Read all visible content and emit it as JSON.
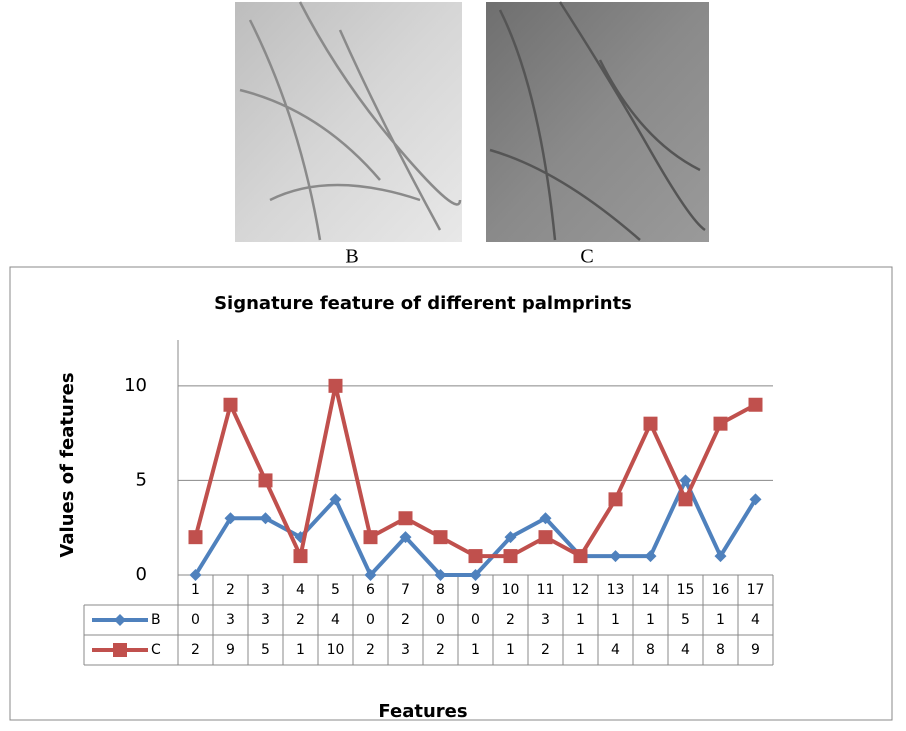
{
  "figure": {
    "panel_labels": [
      "B",
      "C"
    ]
  },
  "chart_data": {
    "type": "line",
    "title": "Signature feature of different palmprints",
    "x_label": "Features",
    "y_label": "Values of features",
    "categories": [
      "1",
      "2",
      "3",
      "4",
      "5",
      "6",
      "7",
      "8",
      "9",
      "10",
      "11",
      "12",
      "13",
      "14",
      "15",
      "16",
      "17"
    ],
    "series": [
      {
        "name": "B",
        "color": "#4f81bd",
        "marker": "diamond",
        "values": [
          0,
          3,
          3,
          2,
          4,
          0,
          2,
          0,
          0,
          2,
          3,
          1,
          1,
          1,
          5,
          1,
          4
        ]
      },
      {
        "name": "C",
        "color": "#c0504d",
        "marker": "square",
        "values": [
          2,
          9,
          5,
          1,
          10,
          2,
          3,
          2,
          1,
          1,
          2,
          1,
          4,
          8,
          4,
          8,
          9
        ]
      }
    ],
    "ylim": [
      0,
      12
    ],
    "yticks": [
      0,
      5,
      10
    ],
    "grid": true,
    "data_table": true
  }
}
